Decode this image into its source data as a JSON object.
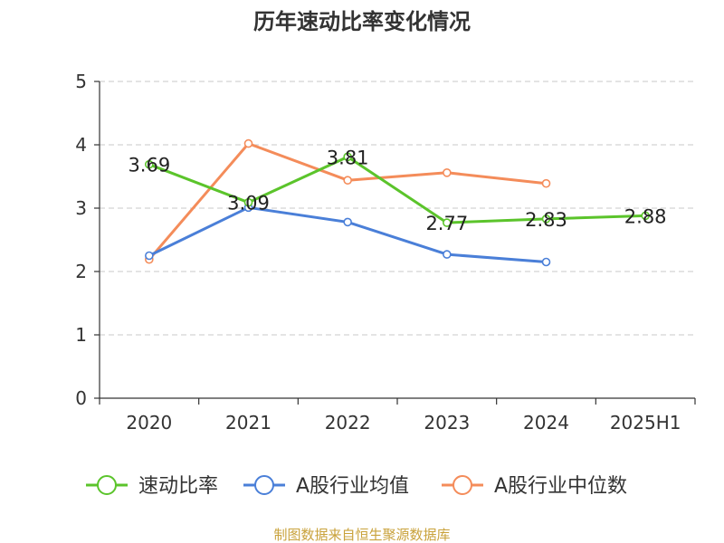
{
  "chart_data": {
    "type": "line",
    "title": "历年速动比率变化情况",
    "categories": [
      "2020",
      "2021",
      "2022",
      "2023",
      "2024",
      "2025H1"
    ],
    "ylim": [
      0,
      5
    ],
    "yticks": [
      0,
      1,
      2,
      3,
      4,
      5
    ],
    "grid": true,
    "legend_position": "bottom",
    "series": [
      {
        "name": "速动比率",
        "color": "#5bc42b",
        "values": [
          3.69,
          3.09,
          3.81,
          2.77,
          2.83,
          2.88
        ],
        "labels": [
          "3.69",
          "3.09",
          "3.81",
          "2.77",
          "2.83",
          "2.88"
        ]
      },
      {
        "name": "A股行业均值",
        "color": "#4a7fd8",
        "values": [
          2.25,
          3.01,
          2.78,
          2.27,
          2.15,
          null
        ]
      },
      {
        "name": "A股行业中位数",
        "color": "#f48c5a",
        "values": [
          2.19,
          4.02,
          3.44,
          3.56,
          3.39,
          null
        ]
      }
    ],
    "source": "制图数据来自恒生聚源数据库"
  }
}
